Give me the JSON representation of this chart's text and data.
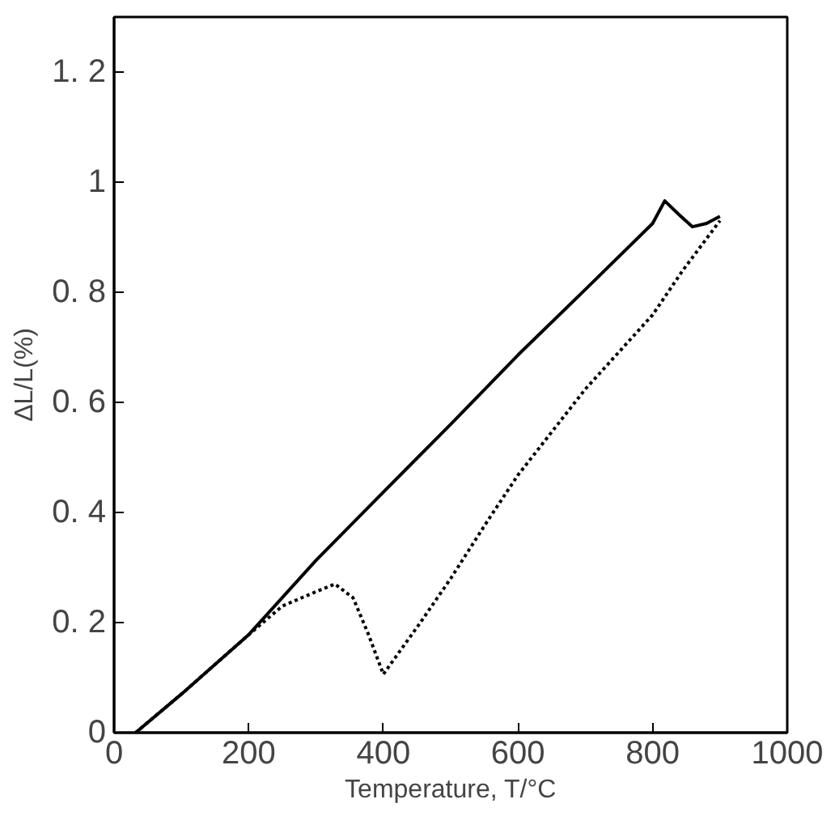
{
  "chart_data": {
    "type": "line",
    "xlabel": "Temperature, T/°C",
    "ylabel": "ΔL/L(%)",
    "xlim": [
      0,
      1000
    ],
    "ylim": [
      0,
      1.3
    ],
    "xticks": [
      0,
      200,
      400,
      600,
      800,
      1000
    ],
    "yticks": [
      0,
      {
        "value": 0.2,
        "label": "0. 2"
      },
      {
        "value": 0.4,
        "label": "0. 4"
      },
      {
        "value": 0.6,
        "label": "0. 6"
      },
      {
        "value": 0.8,
        "label": "0. 8"
      },
      1,
      {
        "value": 1.2,
        "label": "1. 2"
      }
    ],
    "grid": false,
    "series": [
      {
        "color": "#000000",
        "line_style": "solid",
        "x": [
          32,
          100,
          200,
          300,
          400,
          500,
          600,
          700,
          800,
          818,
          840,
          859,
          880,
          900
        ],
        "values": [
          0,
          0.07,
          0.178,
          0.313,
          0.437,
          0.56,
          0.686,
          0.805,
          0.925,
          0.966,
          0.94,
          0.919,
          0.925,
          0.938
        ]
      },
      {
        "color": "#000000",
        "line_style": "dotted",
        "x": [
          32,
          100,
          200,
          250,
          300,
          328,
          355,
          378,
          400,
          455,
          500,
          555,
          600,
          700,
          800,
          845,
          900
        ],
        "values": [
          0,
          0.07,
          0.178,
          0.23,
          0.256,
          0.27,
          0.245,
          0.178,
          0.106,
          0.2,
          0.28,
          0.385,
          0.468,
          0.624,
          0.759,
          0.84,
          0.93
        ]
      }
    ]
  }
}
